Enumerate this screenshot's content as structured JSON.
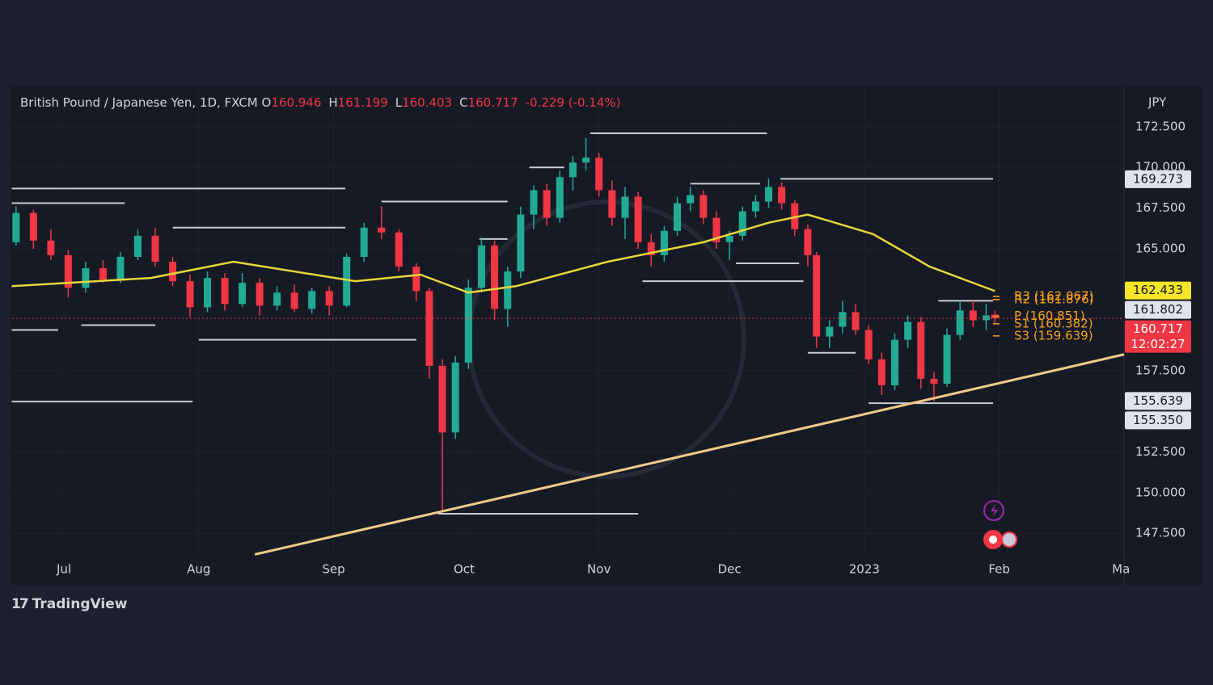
{
  "chart_data": {
    "type": "candlestick",
    "title": "British Pound / Japanese Yen, 1D, FXCM",
    "header": {
      "o_label": "O",
      "open": 160.946,
      "h_label": "H",
      "high": 161.199,
      "l_label": "L",
      "low": 160.403,
      "c_label": "C",
      "close": 160.717,
      "change": "-0.229 (-0.14%)"
    },
    "currency": "JPY",
    "brand": "TradingView",
    "xlim": [
      -11.9,
      243.7
    ],
    "ylim": [
      146.02,
      174.93
    ],
    "xticks": [
      {
        "value": 0,
        "label": "Jul"
      },
      {
        "value": 31,
        "label": "Aug"
      },
      {
        "value": 62,
        "label": "Sep"
      },
      {
        "value": 92,
        "label": "Oct"
      },
      {
        "value": 123,
        "label": "Nov"
      },
      {
        "value": 153,
        "label": "Dec"
      },
      {
        "value": 184,
        "label": "2023"
      },
      {
        "value": 215,
        "label": "Feb"
      },
      {
        "value": 243,
        "label": "Ma"
      }
    ],
    "yticks": [
      {
        "value": 172.5,
        "label": "172.500"
      },
      {
        "value": 170,
        "label": "170.000"
      },
      {
        "value": 167.5,
        "label": "167.500"
      },
      {
        "value": 165,
        "label": "165.000"
      },
      {
        "value": 157.5,
        "label": "157.500"
      },
      {
        "value": 152.5,
        "label": "152.500"
      },
      {
        "value": 150,
        "label": "150.000"
      },
      {
        "value": 147.5,
        "label": "147.500"
      }
    ],
    "grid": true,
    "up_color": "#22ab94",
    "down_color": "#f23645",
    "x": [
      -11,
      -7,
      -3,
      1,
      5,
      9,
      13,
      17,
      21,
      25,
      29,
      33,
      37,
      41,
      45,
      49,
      53,
      57,
      61,
      65,
      69,
      73,
      77,
      81,
      84,
      87,
      90,
      93,
      96,
      99,
      102,
      105,
      108,
      111,
      114,
      117,
      120,
      123,
      126,
      129,
      132,
      135,
      138,
      141,
      144,
      147,
      150,
      153,
      156,
      159,
      162,
      165,
      168,
      171,
      173,
      176,
      179,
      182,
      185,
      188,
      191,
      194,
      197,
      200,
      203,
      206,
      209,
      212,
      214
    ],
    "open": [
      165.4,
      167.2,
      165.5,
      164.6,
      162.6,
      163.8,
      163.1,
      164.5,
      165.8,
      164.2,
      163.0,
      161.4,
      163.2,
      161.6,
      162.9,
      161.5,
      162.3,
      161.3,
      162.4,
      161.5,
      164.5,
      166.3,
      166.0,
      163.9,
      162.4,
      157.8,
      153.7,
      158.0,
      162.6,
      165.2,
      161.3,
      163.6,
      167.1,
      168.6,
      166.9,
      169.4,
      170.3,
      170.6,
      168.6,
      166.9,
      168.2,
      165.4,
      164.6,
      166.1,
      167.8,
      168.3,
      166.9,
      165.4,
      165.8,
      167.3,
      167.9,
      168.8,
      167.8,
      166.2,
      164.6,
      159.6,
      160.2,
      161.1,
      160.0,
      158.2,
      156.6,
      159.4,
      160.5,
      157.0,
      156.7,
      159.7,
      161.2,
      160.6,
      160.946
    ],
    "high": [
      167.6,
      167.4,
      166.2,
      164.9,
      164.2,
      164.3,
      164.8,
      166.2,
      166.3,
      164.5,
      163.4,
      163.6,
      163.5,
      163.5,
      163.2,
      162.7,
      162.8,
      162.6,
      162.7,
      164.7,
      166.6,
      167.6,
      166.2,
      164.1,
      162.6,
      158.2,
      158.4,
      163.1,
      165.7,
      165.5,
      163.9,
      167.6,
      168.9,
      169.0,
      169.8,
      170.7,
      171.8,
      170.9,
      169.2,
      168.8,
      168.5,
      165.9,
      166.4,
      168.2,
      168.8,
      168.6,
      167.3,
      166.1,
      167.6,
      168.3,
      169.3,
      169.1,
      168.0,
      166.5,
      164.8,
      160.6,
      161.8,
      161.6,
      160.3,
      158.6,
      159.8,
      160.9,
      160.8,
      157.4,
      160.1,
      161.8,
      161.8,
      161.6,
      161.199
    ],
    "low": [
      165.2,
      165.0,
      164.3,
      162.0,
      162.3,
      162.9,
      162.9,
      164.3,
      163.9,
      162.7,
      160.8,
      161.1,
      161.2,
      161.4,
      160.9,
      161.2,
      161.1,
      161.0,
      160.9,
      161.4,
      164.2,
      165.6,
      163.6,
      161.8,
      157.0,
      148.9,
      153.3,
      157.6,
      162.3,
      160.6,
      160.2,
      163.2,
      166.2,
      166.4,
      166.6,
      168.6,
      169.8,
      168.2,
      166.4,
      165.6,
      165.0,
      163.9,
      164.2,
      165.8,
      167.3,
      166.5,
      165.0,
      164.3,
      165.5,
      166.9,
      167.5,
      167.4,
      165.8,
      163.9,
      158.9,
      158.9,
      159.8,
      159.7,
      157.9,
      156.0,
      156.3,
      158.9,
      156.4,
      155.6,
      156.5,
      159.4,
      160.2,
      160.0,
      160.403
    ],
    "close": [
      167.2,
      165.5,
      164.6,
      162.6,
      163.8,
      163.1,
      164.5,
      165.8,
      164.2,
      163.0,
      161.4,
      163.2,
      161.6,
      162.9,
      161.5,
      162.3,
      161.3,
      162.4,
      161.5,
      164.5,
      166.3,
      166.0,
      163.9,
      162.4,
      157.8,
      153.7,
      158.0,
      162.6,
      165.2,
      161.3,
      163.6,
      167.1,
      168.6,
      166.9,
      169.4,
      170.3,
      170.6,
      168.6,
      166.9,
      168.2,
      165.4,
      164.6,
      166.1,
      167.8,
      168.3,
      166.9,
      165.4,
      165.8,
      167.3,
      167.9,
      168.8,
      167.8,
      166.2,
      164.6,
      159.6,
      160.2,
      161.1,
      160.0,
      158.2,
      156.6,
      159.4,
      160.5,
      157.0,
      156.7,
      159.7,
      161.2,
      160.6,
      160.9,
      160.717
    ],
    "moving_average": {
      "color": "#e8d63a",
      "x": [
        -12,
        20,
        39,
        67,
        82,
        93,
        104,
        125,
        147,
        162,
        171,
        186,
        199,
        214
      ],
      "values": [
        162.7,
        163.2,
        164.2,
        163.0,
        163.4,
        162.3,
        162.7,
        164.2,
        165.4,
        166.6,
        167.1,
        165.9,
        163.9,
        162.4
      ]
    },
    "trendline": {
      "color": "#f0c987",
      "x": [
        43.9,
        243.7
      ],
      "values": [
        146.2,
        158.5
      ]
    },
    "levels": [
      {
        "x": [
          121,
          161.6
        ],
        "value": 172.1
      },
      {
        "x": [
          -12,
          64.7
        ],
        "value": 168.7
      },
      {
        "x": [
          -12,
          14
        ],
        "value": 167.8
      },
      {
        "x": [
          73,
          102
        ],
        "value": 167.9
      },
      {
        "x": [
          25,
          64.7
        ],
        "value": 166.3
      },
      {
        "x": [
          164.7,
          213.6
        ],
        "value": 169.3
      },
      {
        "x": [
          107,
          115
        ],
        "value": 170.0
      },
      {
        "x": [
          144,
          160
        ],
        "value": 169.0
      },
      {
        "x": [
          95.5,
          102
        ],
        "value": 165.6
      },
      {
        "x": [
          133,
          170
        ],
        "value": 163.0
      },
      {
        "x": [
          154.5,
          169
        ],
        "value": 164.1
      },
      {
        "x": [
          4,
          21
        ],
        "value": 160.3
      },
      {
        "x": [
          31,
          81
        ],
        "value": 159.4
      },
      {
        "x": [
          -12,
          -1.3
        ],
        "value": 160.0
      },
      {
        "x": [
          -12,
          29.6
        ],
        "value": 155.6
      },
      {
        "x": [
          86,
          132
        ],
        "value": 148.7
      },
      {
        "x": [
          171,
          182
        ],
        "value": 158.6
      },
      {
        "x": [
          185,
          213.6
        ],
        "value": 155.5
      },
      {
        "x": [
          201,
          213.6
        ],
        "value": 161.8
      }
    ],
    "pivots": [
      {
        "value": 162.067,
        "label": "R3 (162.067)"
      },
      {
        "value": 161.876,
        "label": "R2 (161.876)"
      },
      {
        "value": 160.851,
        "label": "P (160.851)"
      },
      {
        "value": 160.382,
        "label": "S1 (160.382)"
      },
      {
        "value": 159.639,
        "label": "S3 (159.639)"
      }
    ],
    "price_badges": [
      {
        "value": 169.273,
        "color": "#e0e3eb"
      },
      {
        "value": 162.433,
        "color": "#f5e62a"
      },
      {
        "value": 161.802,
        "color": "#e0e3eb"
      },
      {
        "value": 160.717,
        "color": "#f23645",
        "countdown": "12:02:27"
      },
      {
        "value": 155.639,
        "color": "#e0e3eb"
      },
      {
        "value": 155.35,
        "label": "155.350",
        "color": "#e0e3eb"
      }
    ]
  }
}
